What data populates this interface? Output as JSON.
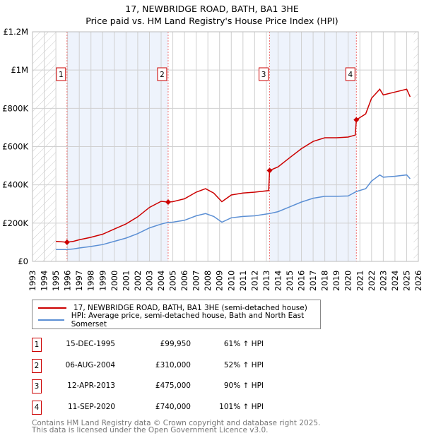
{
  "chart_data": {
    "type": "line",
    "title": "17, NEWBRIDGE ROAD, BATH, BA1 3HE",
    "subtitle": "Price paid vs. HM Land Registry's House Price Index (HPI)",
    "xlim": [
      1993,
      2026
    ],
    "ylim": [
      0,
      1200000
    ],
    "y_ticks": [
      {
        "v": 0,
        "label": "£0"
      },
      {
        "v": 200000,
        "label": "£200K"
      },
      {
        "v": 400000,
        "label": "£400K"
      },
      {
        "v": 600000,
        "label": "£600K"
      },
      {
        "v": 800000,
        "label": "£800K"
      },
      {
        "v": 1000000,
        "label": "£1M"
      },
      {
        "v": 1200000,
        "label": "£1.2M"
      }
    ],
    "x_ticks": [
      "1993",
      "1994",
      "1995",
      "1996",
      "1997",
      "1998",
      "1999",
      "2000",
      "2001",
      "2002",
      "2003",
      "2004",
      "2005",
      "2006",
      "2007",
      "2008",
      "2009",
      "2010",
      "2011",
      "2012",
      "2013",
      "2014",
      "2015",
      "2016",
      "2017",
      "2018",
      "2019",
      "2020",
      "2021",
      "2022",
      "2023",
      "2024",
      "2025",
      "2026"
    ],
    "hatched_before": 1995.0,
    "hatched_after": 2025.6,
    "series": [
      {
        "name": "17, NEWBRIDGE ROAD, BATH, BA1 3HE (semi-detached house)",
        "color": "#cc0000",
        "x": [
          1995.0,
          1995.95,
          1996.5,
          1997,
          1998,
          1999,
          2000,
          2001,
          2002,
          2003,
          2004,
          2004.6,
          2005,
          2006,
          2007,
          2007.8,
          2008.5,
          2009.2,
          2010,
          2011,
          2012,
          2013.2,
          2013.28,
          2014,
          2015,
          2016,
          2017,
          2018,
          2019,
          2020,
          2020.6,
          2020.7,
          2021.5,
          2022,
          2022.7,
          2023,
          2024,
          2025,
          2025.3
        ],
        "y": [
          105000,
          99950,
          105000,
          113000,
          126000,
          142000,
          169000,
          196000,
          233000,
          282000,
          314000,
          310000,
          312000,
          327000,
          362000,
          380000,
          357000,
          312000,
          347000,
          357000,
          362000,
          370000,
          475000,
          494000,
          542000,
          589000,
          627000,
          646000,
          646000,
          650000,
          660000,
          740000,
          771000,
          853000,
          900000,
          870000,
          885000,
          900000,
          860000
        ]
      },
      {
        "name": "HPI: Average price, semi-detached house, Bath and North East Somerset",
        "color": "#5b8fd4",
        "x": [
          1995.0,
          1995.95,
          1996.5,
          1997,
          1998,
          1999,
          2000,
          2001,
          2002,
          2003,
          2004,
          2004.6,
          2005,
          2006,
          2007,
          2007.8,
          2008.5,
          2009.2,
          2010,
          2011,
          2012,
          2013.28,
          2014,
          2015,
          2016,
          2017,
          2018,
          2019,
          2020,
          2020.7,
          2021.5,
          2022,
          2022.7,
          2023,
          2024,
          2025,
          2025.3
        ],
        "y": [
          62000,
          62000,
          65000,
          70000,
          78000,
          88000,
          105000,
          122000,
          145000,
          175000,
          195000,
          204000,
          205000,
          215000,
          238000,
          250000,
          235000,
          205000,
          228000,
          235000,
          238000,
          250000,
          260000,
          285000,
          310000,
          330000,
          340000,
          340000,
          342000,
          365000,
          380000,
          420000,
          452000,
          440000,
          445000,
          452000,
          432000
        ]
      }
    ],
    "sales": [
      {
        "n": "1",
        "x": 1995.95,
        "date": "15-DEC-1995",
        "price": "£99,950",
        "value": 99950,
        "hpi": "61% ↑ HPI"
      },
      {
        "n": "2",
        "x": 2004.6,
        "date": "06-AUG-2004",
        "price": "£310,000",
        "value": 310000,
        "hpi": "52% ↑ HPI"
      },
      {
        "n": "3",
        "x": 2013.28,
        "date": "12-APR-2013",
        "price": "£475,000",
        "value": 475000,
        "hpi": "90% ↑ HPI"
      },
      {
        "n": "4",
        "x": 2020.7,
        "date": "11-SEP-2020",
        "price": "£740,000",
        "value": 740000,
        "hpi": "101% ↑ HPI"
      }
    ],
    "footer": [
      "Contains HM Land Registry data © Crown copyright and database right 2025.",
      "This data is licensed under the Open Government Licence v3.0."
    ]
  }
}
